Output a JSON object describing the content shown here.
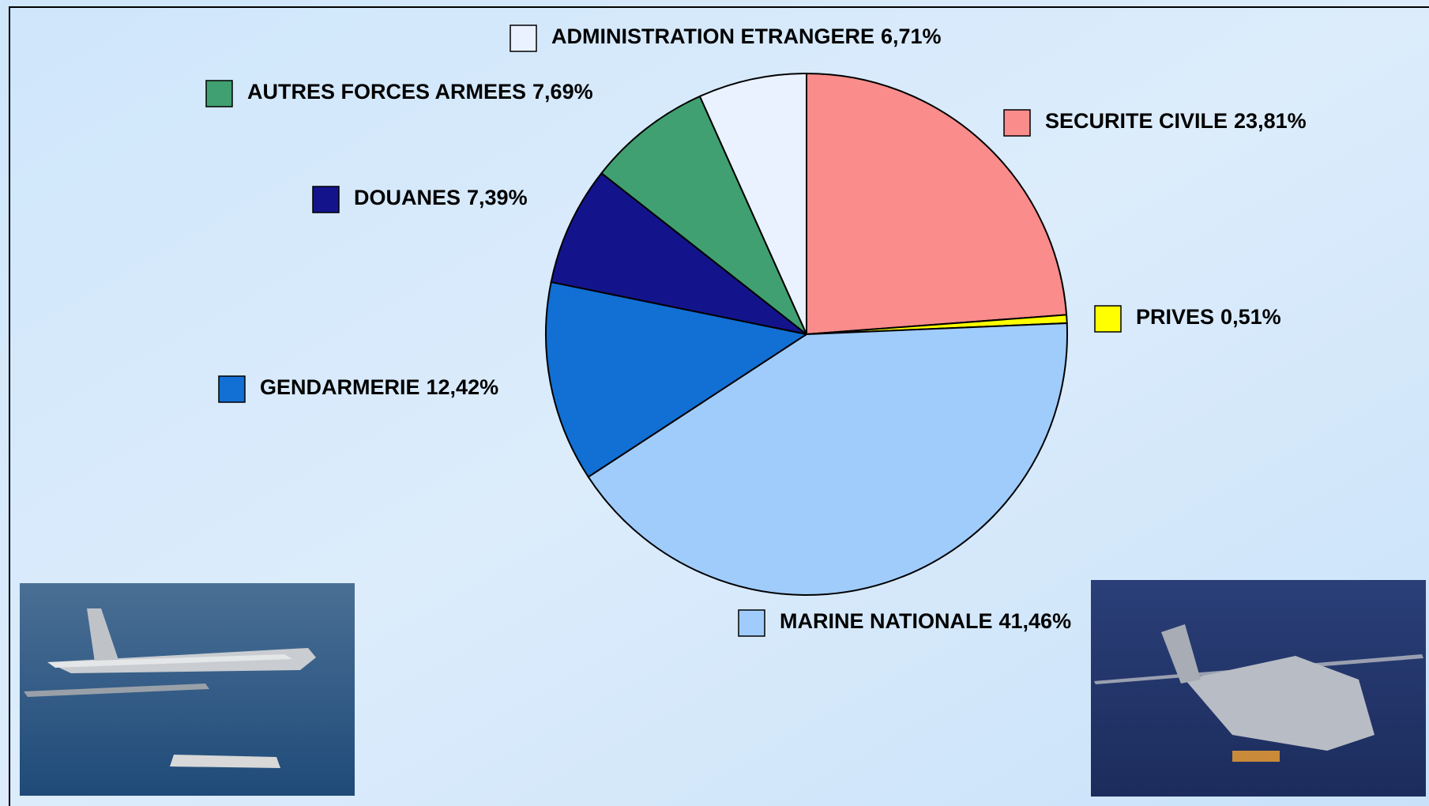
{
  "chart_data": {
    "type": "pie",
    "categories": [
      "SECURITE CIVILE",
      "PRIVES",
      "MARINE NATIONALE",
      "GENDARMERIE",
      "DOUANES",
      "AUTRES FORCES ARMEES",
      "ADMINISTRATION ETRANGERE"
    ],
    "values": [
      23.81,
      0.51,
      41.46,
      12.42,
      7.39,
      7.69,
      6.71
    ],
    "value_labels": [
      "23,81%",
      "0,51%",
      "41,46%",
      "12,42%",
      "7,39%",
      "7,69%",
      "6,71%"
    ],
    "colors": [
      "#fa8c8c",
      "#ffff00",
      "#a0ccfc",
      "#126fd4",
      "#13148c",
      "#41a071",
      "#eaf2ff"
    ]
  }
}
